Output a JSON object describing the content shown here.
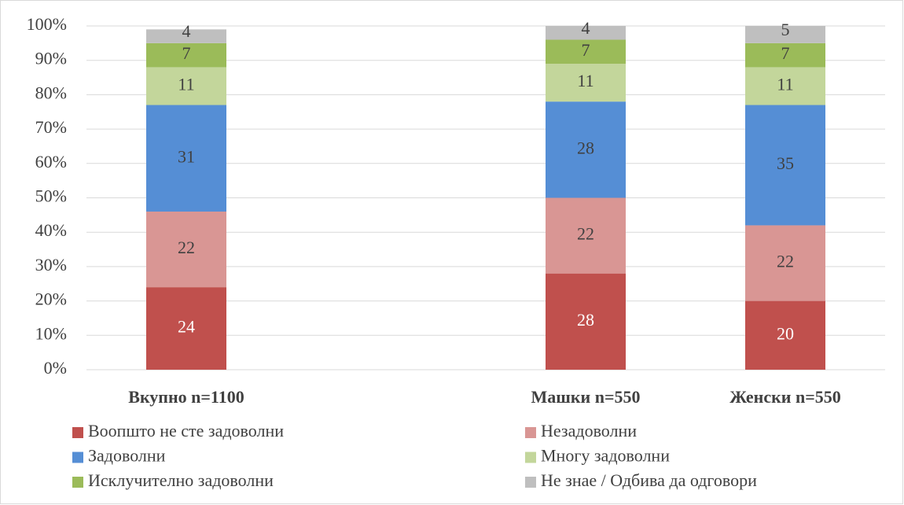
{
  "chart_data": {
    "type": "stacked_bar",
    "categories": [
      "Вкупно n=1100",
      null,
      "Машки n=550",
      "Женски n=550"
    ],
    "series": [
      {
        "name": "Воопшто не сте задоволни",
        "color": "#c0504d",
        "values": [
          24,
          null,
          28,
          20
        ]
      },
      {
        "name": "Незадоволни",
        "color": "#d99694",
        "values": [
          22,
          null,
          22,
          22
        ]
      },
      {
        "name": "Задоволни",
        "color": "#558ed5",
        "values": [
          31,
          null,
          28,
          35
        ]
      },
      {
        "name": "Многу задоволни",
        "color": "#c3d69b",
        "values": [
          11,
          null,
          11,
          11
        ]
      },
      {
        "name": "Исклучително задоволни",
        "color": "#9bbb59",
        "values": [
          7,
          null,
          7,
          7
        ]
      },
      {
        "name": "Не знае / Одбива да одговори",
        "color": "#bfbfbf",
        "values": [
          4,
          null,
          4,
          5
        ]
      }
    ],
    "ylim": [
      0,
      100
    ],
    "yticks": [
      {
        "value": 0,
        "label": "0%"
      },
      {
        "value": 10,
        "label": "10%"
      },
      {
        "value": 20,
        "label": "20%"
      },
      {
        "value": 30,
        "label": "30%"
      },
      {
        "value": 40,
        "label": "40%"
      },
      {
        "value": 50,
        "label": "50%"
      },
      {
        "value": 60,
        "label": "60%"
      },
      {
        "value": 70,
        "label": "70%"
      },
      {
        "value": 80,
        "label": "80%"
      },
      {
        "value": 90,
        "label": "90%"
      },
      {
        "value": 100,
        "label": "100%"
      }
    ],
    "grid": true
  }
}
